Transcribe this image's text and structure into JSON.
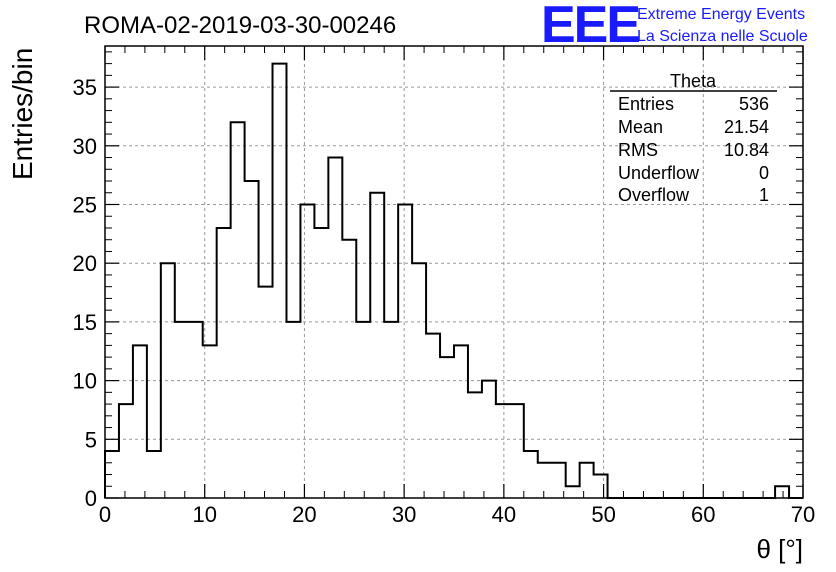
{
  "header": {
    "title": "ROMA-02-2019-03-30-00246",
    "brand_logo": "EEE",
    "brand_line1": "Extreme Energy Events",
    "brand_line2": "La Scienza nelle Scuole",
    "brand_color": "#1a1aff"
  },
  "stats": {
    "name": "Theta",
    "rows": [
      {
        "label": "Entries",
        "value": "536"
      },
      {
        "label": "Mean",
        "value": "21.54"
      },
      {
        "label": "RMS",
        "value": "10.84"
      },
      {
        "label": "Underflow",
        "value": "0"
      },
      {
        "label": "Overflow",
        "value": "1"
      }
    ]
  },
  "chart_data": {
    "type": "histogram",
    "title": "ROMA-02-2019-03-30-00246",
    "xlabel": "θ [°]",
    "ylabel": "Entries/bin",
    "xlim": [
      0,
      70
    ],
    "ylim": [
      0,
      38.5
    ],
    "grid": true,
    "x_ticks": [
      0,
      10,
      20,
      30,
      40,
      50,
      60,
      70
    ],
    "y_ticks": [
      0,
      5,
      10,
      15,
      20,
      25,
      30,
      35
    ],
    "bin_edges_start": 0,
    "bin_width": 1.4,
    "values": [
      4,
      8,
      13,
      4,
      20,
      15,
      15,
      13,
      23,
      32,
      27,
      18,
      37,
      15,
      25,
      23,
      29,
      22,
      15,
      26,
      15,
      25,
      20,
      14,
      12,
      13,
      9,
      10,
      8,
      8,
      4,
      3,
      3,
      1,
      3,
      2,
      0,
      0,
      0,
      0,
      0,
      0,
      0,
      0,
      0,
      0,
      0,
      0,
      1,
      0
    ],
    "line_color": "#000000"
  }
}
